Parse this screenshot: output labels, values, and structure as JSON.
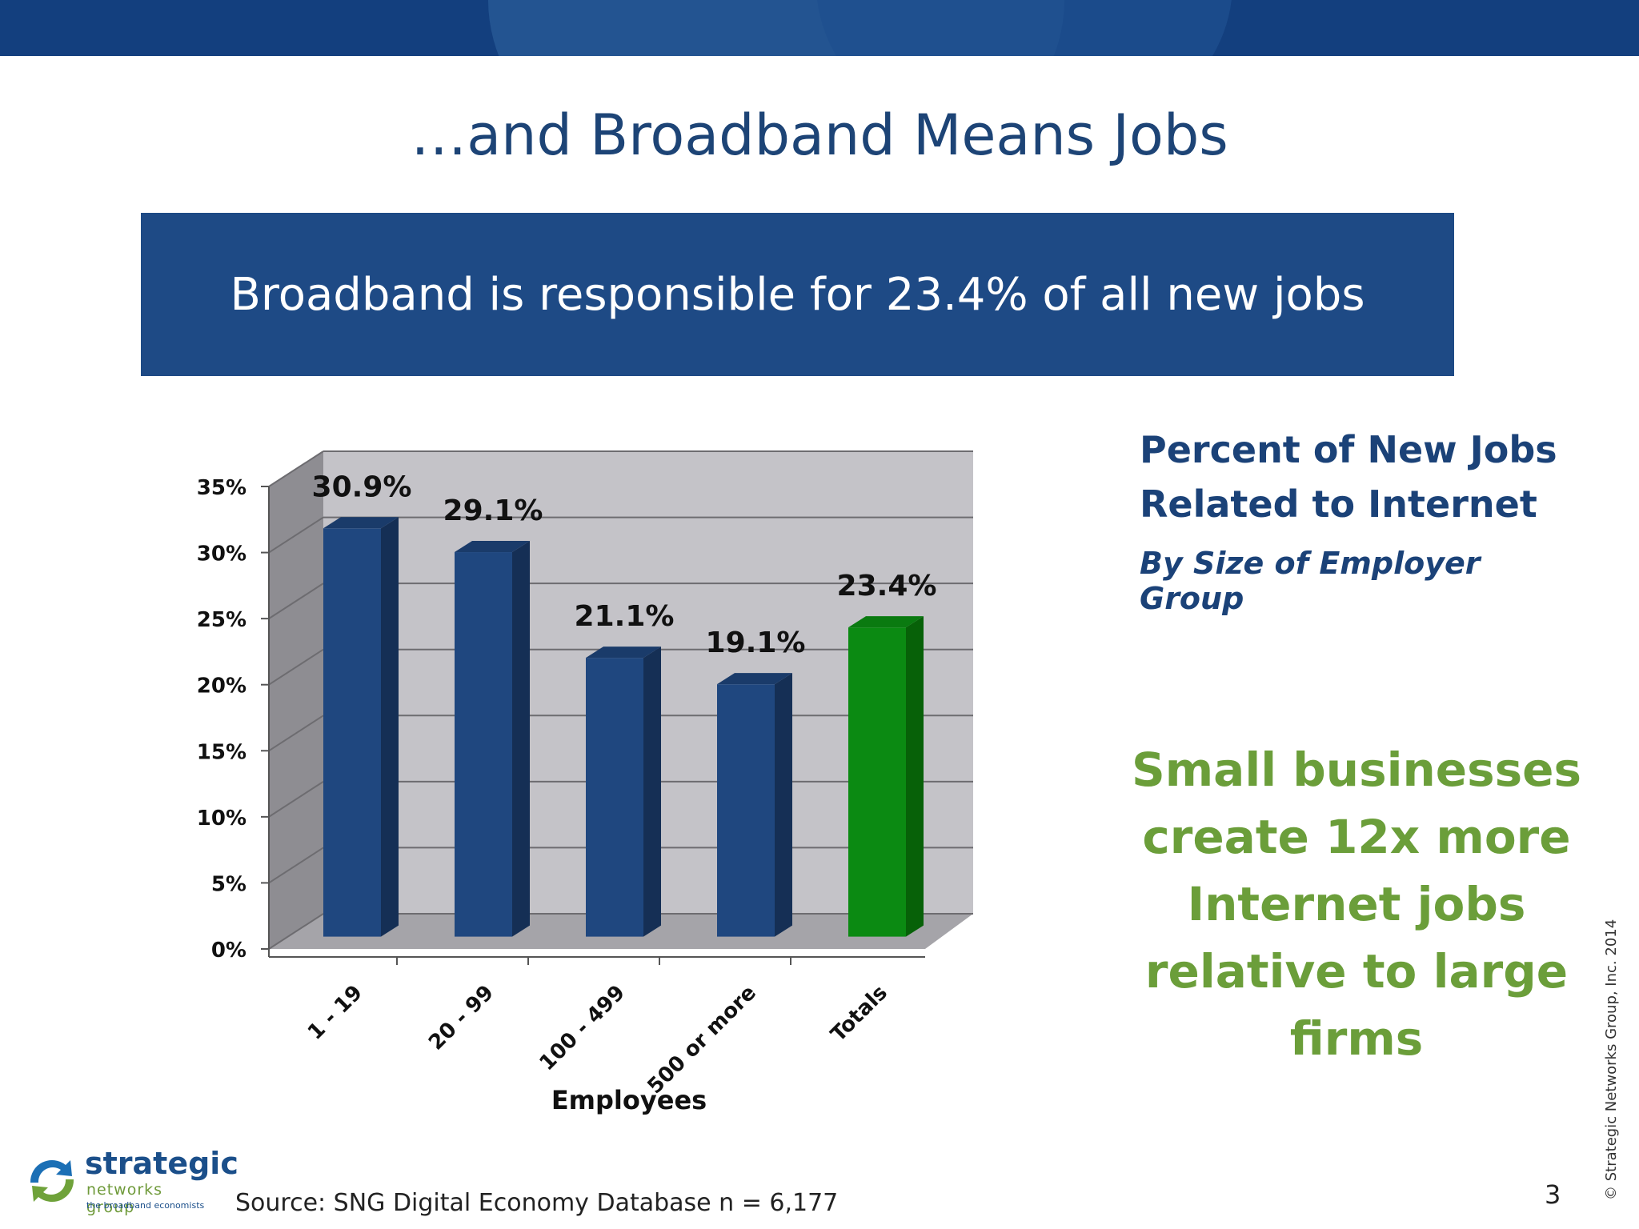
{
  "slide_title": "…and Broadband Means Jobs",
  "banner_text": "Broadband is responsible for 23.4% of all new jobs",
  "side_title_line1": "Percent of New Jobs",
  "side_title_line2": "Related to Internet",
  "side_subtitle": "By Size of Employer Group",
  "callout_lines": [
    "Small businesses",
    "create 12x more",
    "Internet jobs",
    "relative to large",
    "firms"
  ],
  "copyright": "© Strategic Networks Group, Inc. 2014",
  "page_number": "3",
  "source": "Source: SNG Digital Economy Database n = 6,177",
  "logo": {
    "word": "strategic",
    "sub": "networks group",
    "tag": "the broadband economists"
  },
  "colors": {
    "bar_blue": "#1f477f",
    "bar_green": "#0b8a12",
    "title_blue": "#1d4476",
    "banner_blue": "#1e4a85",
    "callout_green": "#6b9e3a"
  },
  "chart_data": {
    "type": "bar",
    "categories": [
      "1 - 19",
      "20 - 99",
      "100 - 499",
      "500 or more",
      "Totals"
    ],
    "values": [
      30.9,
      29.1,
      21.1,
      19.1,
      23.4
    ],
    "data_labels": [
      "30.9%",
      "29.1%",
      "21.1%",
      "19.1%",
      "23.4%"
    ],
    "xlabel": "Employees",
    "ylabel": "",
    "ylim": [
      0,
      35
    ],
    "ytick_labels": [
      "0%",
      "5%",
      "10%",
      "15%",
      "20%",
      "25%",
      "30%",
      "35%"
    ],
    "grid": true,
    "style": "3d-column",
    "highlight_category": "Totals"
  }
}
